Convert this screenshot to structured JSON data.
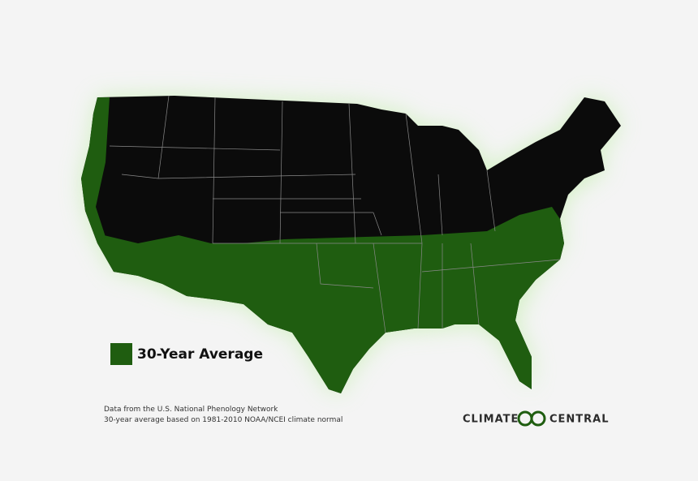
{
  "legend": {
    "label": "30-Year Average"
  },
  "source": {
    "lines": [
      "Data from the U.S. National Phenology Network",
      "30-year average based on 1981-2010 NOAA/NCEI climate normal"
    ]
  },
  "logo": {
    "left": "CLIMATE",
    "right": "CENTRAL"
  }
}
